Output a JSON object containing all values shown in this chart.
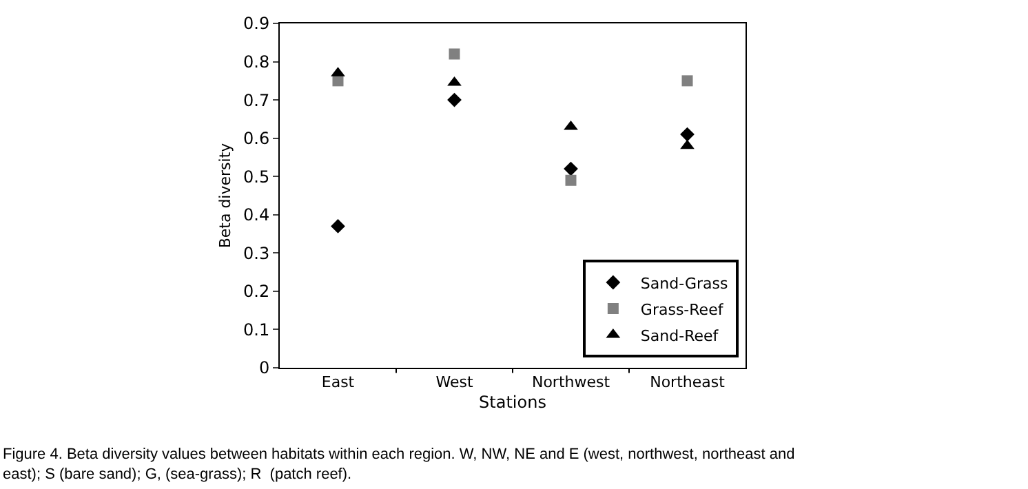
{
  "chart_data": {
    "type": "scatter",
    "xlabel": "Stations",
    "ylabel": "Beta diversity",
    "categories": [
      "East",
      "West",
      "Northwest",
      "Northeast"
    ],
    "series": [
      {
        "name": "Sand-Grass",
        "color": "#000000",
        "marker": "diamond",
        "values": [
          0.37,
          0.7,
          0.52,
          0.61
        ]
      },
      {
        "name": "Grass-Reef",
        "color": "#808080",
        "marker": "square",
        "values": [
          0.75,
          0.82,
          0.49,
          0.75
        ]
      },
      {
        "name": "Sand-Reef",
        "color": "#000000",
        "marker": "triangle",
        "values": [
          0.77,
          0.745,
          0.63,
          0.58
        ]
      }
    ],
    "ylim": [
      0,
      0.9
    ],
    "yticks": [
      {
        "value": 0,
        "label": "0"
      },
      0.1,
      0.2,
      0.3,
      0.4,
      0.5,
      0.6,
      0.7,
      0.8,
      0.9
    ],
    "legend": "bottom right",
    "annotations": [
      "Figure 4. Beta diversity values between habitats within each region. W, NW, NE and E (west, northwest, northeast and east); S (bare sand); G, (sea-grass); R  (patch reef)."
    ]
  }
}
